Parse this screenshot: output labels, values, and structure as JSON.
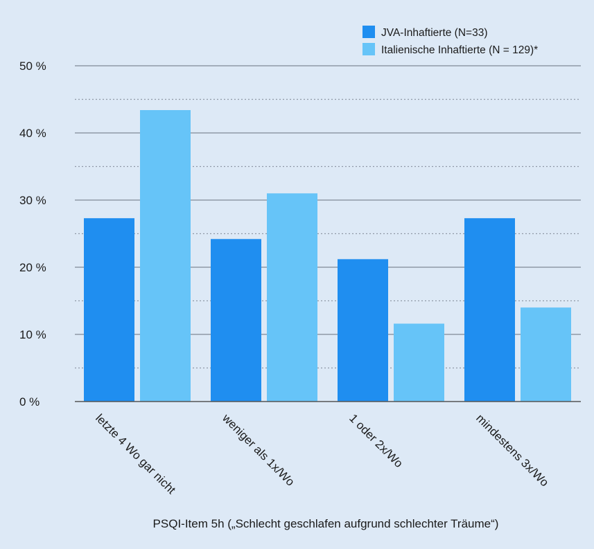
{
  "chart_data": {
    "type": "bar",
    "categories": [
      "letzte 4 Wo gar nicht",
      "weniger als 1x/Wo",
      "1 oder 2x/Wo",
      "mindestens 3x/Wo"
    ],
    "series": [
      {
        "name": "JVA-Inhaftierte (N=33)",
        "values": [
          27.3,
          24.2,
          21.2,
          27.3
        ],
        "color": "#1f8ef0"
      },
      {
        "name": "Italienische Inhaftierte (N = 129)*",
        "values": [
          43.4,
          31.0,
          11.6,
          14.0
        ],
        "color": "#66c4f8"
      }
    ],
    "yticks": [
      "0 %",
      "10 %",
      "20 %",
      "30 %",
      "40 %",
      "50 %"
    ],
    "ylim": [
      0,
      50
    ],
    "ytick_step": 10,
    "xlabel": "PSQI-Item 5h („Schlecht geschlafen aufgrund schlechter Träume“)",
    "ylabel": "",
    "grid": true,
    "legend": "top-right"
  }
}
